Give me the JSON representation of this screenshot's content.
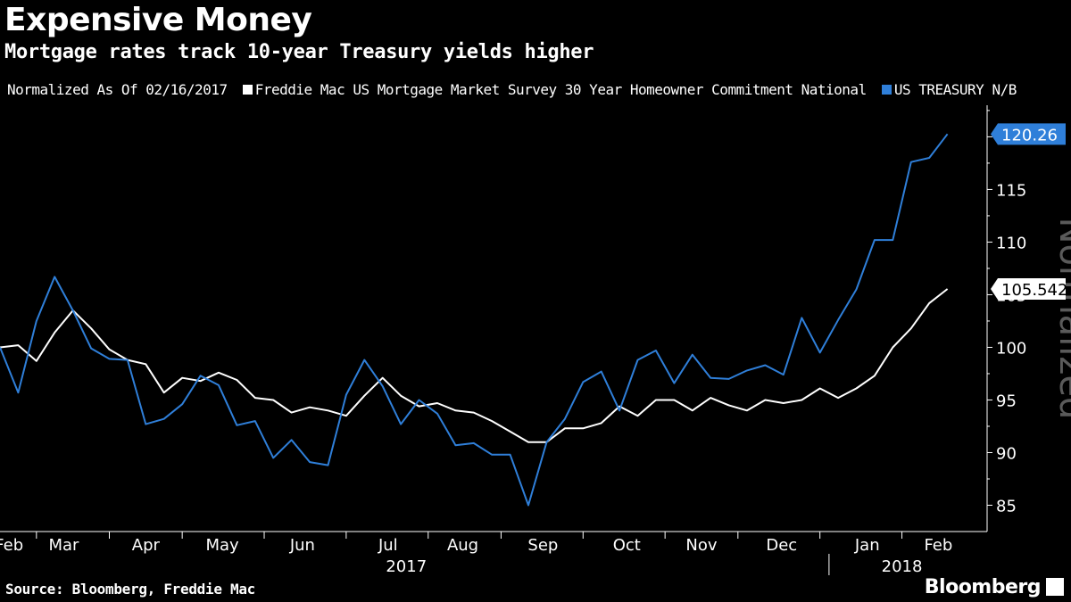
{
  "title": "Expensive Money",
  "subtitle": "Mortgage rates track 10-year Treasury yields higher",
  "legend": {
    "prefix": "Normalized As Of 02/16/2017",
    "items": [
      {
        "label": "Freddie Mac US Mortgage Market Survey 30 Year Homeowner Commitment National",
        "color": "#ffffff"
      },
      {
        "label": "US TREASURY N/B",
        "color": "#2f7fd9"
      }
    ]
  },
  "footer": {
    "source": "Source: Bloomberg, Freddie Mac",
    "brand": "Bloomberg"
  },
  "chart_data": {
    "type": "line",
    "ylabel": "Normalized",
    "ylim": [
      82.5,
      123
    ],
    "yticks": [
      85,
      90,
      95,
      100,
      105,
      110,
      115,
      120
    ],
    "week_count": 54,
    "month_labels": [
      {
        "label": "Feb",
        "week": 0.5
      },
      {
        "label": "Mar",
        "week": 3.5
      },
      {
        "label": "Apr",
        "week": 8
      },
      {
        "label": "May",
        "week": 12.2
      },
      {
        "label": "Jun",
        "week": 16.6
      },
      {
        "label": "Jul",
        "week": 21.3
      },
      {
        "label": "Aug",
        "week": 25.4
      },
      {
        "label": "Sep",
        "week": 29.8
      },
      {
        "label": "Oct",
        "week": 34.4
      },
      {
        "label": "Nov",
        "week": 38.5
      },
      {
        "label": "Dec",
        "week": 42.9
      },
      {
        "label": "Jan",
        "week": 47.6
      },
      {
        "label": "Feb",
        "week": 51.5
      }
    ],
    "month_boundaries": [
      2,
      6,
      10,
      14.5,
      19,
      23.5,
      27.5,
      32,
      36.5,
      40.5,
      45,
      49.5
    ],
    "year_labels": [
      {
        "label": "2017",
        "week": 22.3
      },
      {
        "label": "2018",
        "week": 49.5
      }
    ],
    "year_boundary": 45.5,
    "series": [
      {
        "name": "Freddie Mac US Mortgage Market Survey 30 Year Homeowner Commitment National",
        "color": "#ffffff",
        "last_value_label": "105.542",
        "values": [
          100.0,
          100.2,
          98.7,
          101.4,
          103.5,
          101.8,
          99.8,
          98.8,
          98.4,
          95.7,
          97.1,
          96.8,
          97.6,
          96.9,
          95.2,
          95.0,
          93.8,
          94.3,
          94.0,
          93.5,
          95.4,
          97.1,
          95.4,
          94.4,
          94.7,
          94.0,
          93.8,
          93.0,
          92.0,
          91.0,
          91.0,
          92.3,
          92.3,
          92.8,
          94.4,
          93.5,
          95.0,
          95.0,
          94.0,
          95.2,
          94.5,
          94.0,
          95.0,
          94.7,
          95.0,
          96.1,
          95.2,
          96.1,
          97.3,
          100.0,
          101.8,
          104.2,
          105.542
        ]
      },
      {
        "name": "US TREASURY N/B",
        "color": "#2f7fd9",
        "last_value_label": "120.26",
        "values": [
          100.0,
          95.7,
          102.5,
          106.7,
          103.5,
          99.9,
          98.9,
          98.8,
          92.7,
          93.2,
          94.6,
          97.3,
          96.4,
          92.6,
          93.0,
          89.5,
          91.2,
          89.1,
          88.8,
          95.5,
          98.8,
          96.3,
          92.7,
          95.0,
          93.7,
          90.7,
          90.9,
          89.8,
          89.8,
          85.0,
          91.0,
          93.2,
          96.7,
          97.7,
          94.0,
          98.8,
          99.7,
          96.6,
          99.3,
          97.1,
          97.0,
          97.8,
          98.3,
          97.4,
          102.8,
          99.5,
          102.6,
          105.5,
          110.2,
          110.2,
          117.6,
          118.0,
          120.26
        ]
      }
    ]
  }
}
